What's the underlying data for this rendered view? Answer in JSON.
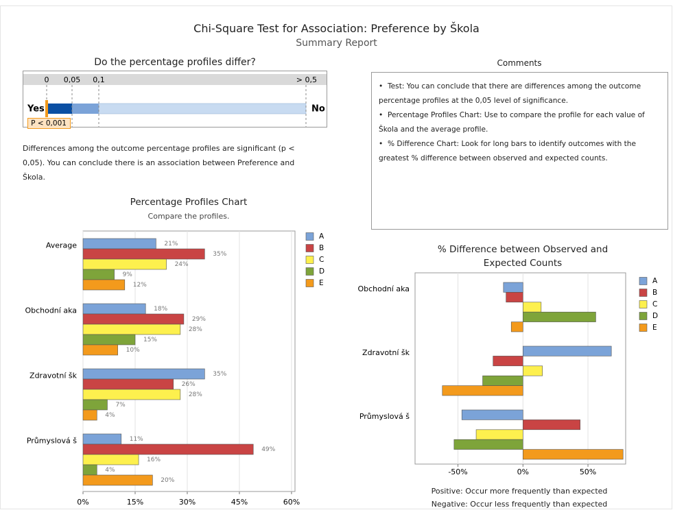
{
  "header": {
    "title": "Chi-Square Test for Association: Preference by Škola",
    "subtitle": "Summary Report"
  },
  "pvalue": {
    "question": "Do the percentage profiles differ?",
    "scale": [
      "0",
      "0,05",
      "0,1",
      "> 0,5"
    ],
    "yes": "Yes",
    "no": "No",
    "p_label": "P < 0,001",
    "conclusion": "Differences among the outcome percentage profiles are significant (p < 0,05). You can conclude there is an association between Preference and Škola."
  },
  "comments": {
    "title": "Comments",
    "items": [
      "Test: You can conclude that there are differences among the outcome percentage profiles at the 0,05 level of significance.",
      "Percentage Profiles Chart: Use to compare the profile for each value of Škola and the average profile.",
      "% Difference Chart: Look for long bars to identify outcomes with the greatest % difference between observed and expected counts."
    ]
  },
  "chart_data": [
    {
      "type": "bar",
      "orientation": "horizontal",
      "title": "Percentage Profiles Chart",
      "subtitle": "Compare the profiles.",
      "categories": [
        "Average",
        "Obchodní aka",
        "Zdravotní šk",
        "Průmyslová š"
      ],
      "series": [
        {
          "name": "A",
          "color": "#7ba3d8",
          "values": [
            21,
            18,
            35,
            11
          ],
          "value_labels": [
            "21%",
            "18%",
            "35%",
            "11%"
          ]
        },
        {
          "name": "B",
          "color": "#c94444",
          "values": [
            35,
            29,
            26,
            49
          ],
          "value_labels": [
            "35%",
            "29%",
            "26%",
            "49%"
          ]
        },
        {
          "name": "C",
          "color": "#fdf04e",
          "values": [
            24,
            28,
            28,
            16
          ],
          "value_labels": [
            "24%",
            "28%",
            "28%",
            "16%"
          ]
        },
        {
          "name": "D",
          "color": "#7ea43a",
          "values": [
            9,
            15,
            7,
            4
          ],
          "value_labels": [
            "9%",
            "15%",
            "7%",
            "4%"
          ]
        },
        {
          "name": "E",
          "color": "#f39a1c",
          "values": [
            12,
            10,
            4,
            20
          ],
          "value_labels": [
            "12%",
            "10%",
            "4%",
            "20%"
          ]
        }
      ],
      "xlim": [
        0,
        61
      ],
      "xticks": [
        {
          "value": 0,
          "label": "0%"
        },
        {
          "value": 15,
          "label": "15%"
        },
        {
          "value": 30,
          "label": "30%"
        },
        {
          "value": 45,
          "label": "45%"
        },
        {
          "value": 60,
          "label": "60%"
        }
      ],
      "grid": true
    },
    {
      "type": "bar",
      "orientation": "horizontal",
      "title": "% Difference between Observed and Expected Counts",
      "categories": [
        "Obchodní aka",
        "Zdravotní šk",
        "Průmyslová š"
      ],
      "series": [
        {
          "name": "A",
          "color": "#7ba3d8",
          "values": [
            -15,
            68,
            -47
          ]
        },
        {
          "name": "B",
          "color": "#c94444",
          "values": [
            -13,
            -23,
            44
          ]
        },
        {
          "name": "C",
          "color": "#fdf04e",
          "values": [
            14,
            15,
            -36
          ]
        },
        {
          "name": "D",
          "color": "#7ea43a",
          "values": [
            56,
            -31,
            -53
          ]
        },
        {
          "name": "E",
          "color": "#f39a1c",
          "values": [
            -9,
            -62,
            77
          ]
        }
      ],
      "xlim": [
        -83,
        79
      ],
      "xticks": [
        {
          "value": -50,
          "label": "-50%"
        },
        {
          "value": 0,
          "label": "0%"
        },
        {
          "value": 50,
          "label": "50%"
        }
      ],
      "grid": true,
      "notes": [
        "Positive: Occur more frequently than expected",
        "Negative: Occur less frequently than expected"
      ]
    }
  ]
}
